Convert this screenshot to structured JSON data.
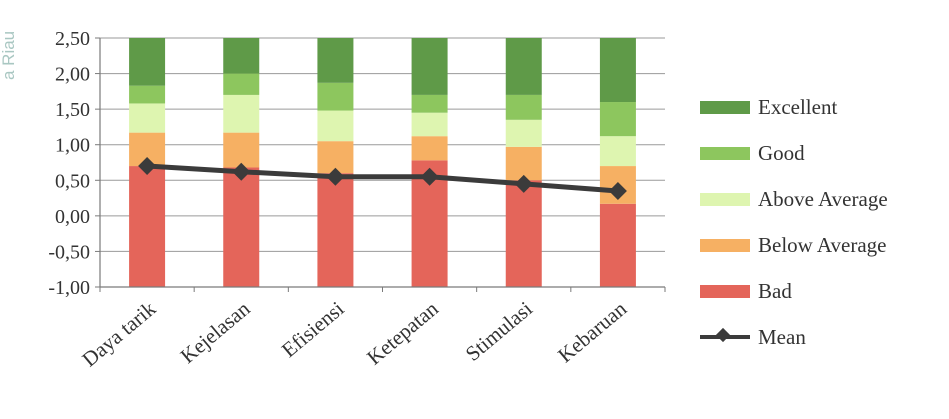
{
  "chart_data": {
    "type": "bar",
    "stacked": true,
    "categories": [
      "Daya tarik",
      "Kejelasan",
      "Efisiensi",
      "Ketepatan",
      "Stimulasi",
      "Kebaruan"
    ],
    "ylim": [
      -1.0,
      2.5
    ],
    "yticks": [
      "2,50",
      "2,00",
      "1,50",
      "1,00",
      "0,50",
      "0,00",
      "-0,50",
      "-1,00"
    ],
    "ytick_values": [
      2.5,
      2.0,
      1.5,
      1.0,
      0.5,
      0.0,
      -0.5,
      -1.0
    ],
    "grid": true,
    "legend_position": "right",
    "bands": [
      {
        "name": "Bad",
        "color": "#e4655a",
        "lower": [
          -1.0,
          -1.0,
          -1.0,
          -1.0,
          -1.0,
          -1.0
        ],
        "upper": [
          0.7,
          0.68,
          0.6,
          0.78,
          0.5,
          0.17
        ]
      },
      {
        "name": "Below Average",
        "color": "#f6b063",
        "lower": [
          0.7,
          0.68,
          0.6,
          0.78,
          0.5,
          0.17
        ],
        "upper": [
          1.17,
          1.17,
          1.05,
          1.12,
          0.97,
          0.7
        ]
      },
      {
        "name": "Above Average",
        "color": "#def5b0",
        "lower": [
          1.17,
          1.17,
          1.05,
          1.12,
          0.97,
          0.7
        ],
        "upper": [
          1.58,
          1.7,
          1.48,
          1.45,
          1.35,
          1.12
        ]
      },
      {
        "name": "Good",
        "color": "#8dc65e",
        "lower": [
          1.58,
          1.7,
          1.48,
          1.45,
          1.35,
          1.12
        ],
        "upper": [
          1.83,
          2.0,
          1.87,
          1.7,
          1.7,
          1.6
        ]
      },
      {
        "name": "Excellent",
        "color": "#5f9a48",
        "lower": [
          1.83,
          2.0,
          1.87,
          1.7,
          1.7,
          1.6
        ],
        "upper": [
          2.5,
          2.5,
          2.5,
          2.5,
          2.5,
          2.5
        ]
      }
    ],
    "series": [
      {
        "name": "Mean",
        "type": "line",
        "color": "#3b3b3b",
        "values": [
          0.7,
          0.62,
          0.55,
          0.55,
          0.45,
          0.35
        ]
      }
    ]
  },
  "legend": {
    "items": [
      {
        "label": "Excellent",
        "color": "#5f9a48"
      },
      {
        "label": "Good",
        "color": "#8dc65e"
      },
      {
        "label": "Above Average",
        "color": "#def5b0"
      },
      {
        "label": "Below Average",
        "color": "#f6b063"
      },
      {
        "label": "Bad",
        "color": "#e4655a"
      }
    ],
    "mean_label": "Mean"
  },
  "watermark": {
    "text": "a Riau"
  }
}
